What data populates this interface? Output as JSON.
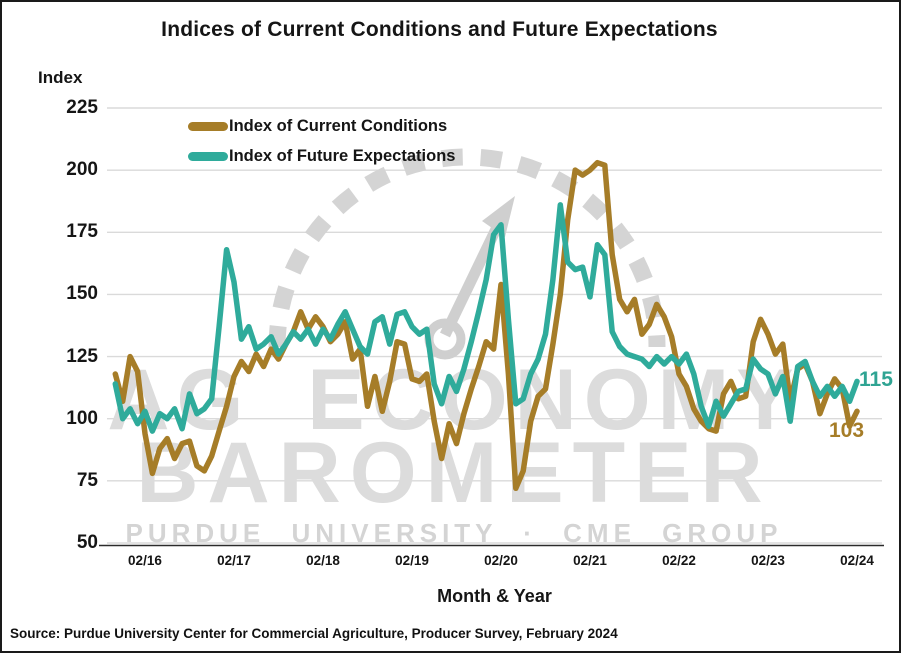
{
  "title": "Indices of Current Conditions and Future Expectations",
  "y_axis": {
    "label": "Index",
    "ticks": [
      225,
      200,
      175,
      150,
      125,
      100,
      75,
      50
    ]
  },
  "x_axis": {
    "label": "Month & Year",
    "tick_labels": [
      "02/16",
      "02/17",
      "02/18",
      "02/19",
      "02/20",
      "02/21",
      "02/22",
      "02/23",
      "02/24"
    ]
  },
  "legend": [
    {
      "label": "Index of Current Conditions",
      "color": "#A67D28"
    },
    {
      "label": "Index of Future Expectations",
      "color": "#2FAB9B"
    }
  ],
  "end_labels": [
    {
      "text": "115",
      "color": "#2FA493",
      "series": "Index of Future Expectations"
    },
    {
      "text": "103",
      "color": "#A67D28",
      "series": "Index of Current Conditions"
    }
  ],
  "watermark": {
    "line1": "AG ECONOMY",
    "line2": "BAROMETER",
    "line3": "PURDUE UNIVERSITY · CME GROUP",
    "color": "#DCDCDC"
  },
  "source": "Source: Purdue University Center for Commercial Agriculture, Producer Survey, February 2024",
  "chart_data": {
    "type": "line",
    "title": "Indices of Current Conditions and Future Expectations",
    "xlabel": "Month & Year",
    "ylabel": "Index",
    "ylim": [
      50,
      225
    ],
    "grid": true,
    "legend_position": "top-left-inside",
    "x": [
      "10/15",
      "11/15",
      "12/15",
      "01/16",
      "02/16",
      "03/16",
      "04/16",
      "05/16",
      "06/16",
      "07/16",
      "08/16",
      "09/16",
      "10/16",
      "11/16",
      "12/16",
      "01/17",
      "02/17",
      "03/17",
      "04/17",
      "05/17",
      "06/17",
      "07/17",
      "08/17",
      "09/17",
      "10/17",
      "11/17",
      "12/17",
      "01/18",
      "02/18",
      "03/18",
      "04/18",
      "05/18",
      "06/18",
      "07/18",
      "08/18",
      "09/18",
      "10/18",
      "11/18",
      "12/18",
      "01/19",
      "02/19",
      "03/19",
      "04/19",
      "05/19",
      "06/19",
      "07/19",
      "08/19",
      "09/19",
      "10/19",
      "11/19",
      "12/19",
      "01/20",
      "02/20",
      "03/20",
      "04/20",
      "05/20",
      "06/20",
      "07/20",
      "08/20",
      "09/20",
      "10/20",
      "11/20",
      "12/20",
      "01/21",
      "02/21",
      "03/21",
      "04/21",
      "05/21",
      "06/21",
      "07/21",
      "08/21",
      "09/21",
      "10/21",
      "11/21",
      "12/21",
      "01/22",
      "02/22",
      "03/22",
      "04/22",
      "05/22",
      "06/22",
      "07/22",
      "08/22",
      "09/22",
      "10/22",
      "11/22",
      "12/22",
      "01/23",
      "02/23",
      "03/23",
      "04/23",
      "05/23",
      "06/23",
      "07/23",
      "08/23",
      "09/23",
      "10/23",
      "11/23",
      "12/23",
      "01/24",
      "02/24"
    ],
    "series": [
      {
        "name": "Index of Current Conditions",
        "color": "#A67D28",
        "values": [
          118,
          107,
          125,
          119,
          94,
          78,
          88,
          92,
          84,
          90,
          91,
          81,
          79,
          85,
          95,
          105,
          117,
          123,
          119,
          126,
          121,
          128,
          124,
          130,
          135,
          143,
          136,
          141,
          137,
          131,
          134,
          139,
          124,
          128,
          105,
          117,
          103,
          115,
          131,
          130,
          116,
          115,
          118,
          99,
          84,
          98,
          90,
          102,
          112,
          121,
          131,
          128,
          154,
          118,
          72,
          79,
          99,
          109,
          112,
          130,
          150,
          180,
          200,
          198,
          200,
          203,
          202,
          166,
          148,
          143,
          148,
          134,
          138,
          146,
          141,
          133,
          118,
          113,
          104,
          99,
          96,
          95,
          110,
          115,
          108,
          109,
          131,
          140,
          134,
          126,
          130,
          107,
          120,
          122,
          115,
          102,
          110,
          116,
          112,
          97,
          103
        ]
      },
      {
        "name": "Index of Future Expectations",
        "color": "#2FAB9B",
        "values": [
          114,
          100,
          104,
          98,
          103,
          95,
          102,
          100,
          104,
          96,
          110,
          102,
          104,
          108,
          137,
          168,
          155,
          132,
          137,
          128,
          130,
          133,
          126,
          130,
          135,
          132,
          136,
          130,
          136,
          132,
          138,
          143,
          136,
          129,
          126,
          139,
          141,
          130,
          142,
          143,
          137,
          134,
          136,
          114,
          106,
          117,
          111,
          120,
          131,
          143,
          156,
          174,
          178,
          140,
          106,
          108,
          118,
          124,
          134,
          156,
          186,
          163,
          160,
          161,
          149,
          170,
          166,
          135,
          129,
          126,
          125,
          124,
          121,
          125,
          122,
          125,
          122,
          126,
          118,
          105,
          97,
          107,
          101,
          106,
          111,
          112,
          124,
          120,
          118,
          110,
          117,
          99,
          121,
          123,
          115,
          109,
          113,
          109,
          113,
          107,
          115
        ]
      }
    ],
    "last_value_labels": {
      "Index of Future Expectations": 115,
      "Index of Current Conditions": 103
    }
  }
}
